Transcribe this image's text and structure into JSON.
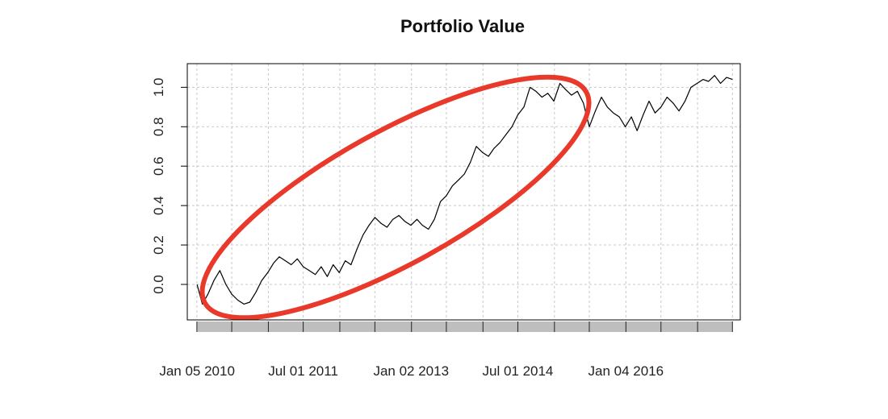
{
  "chart_data": {
    "type": "line",
    "title": "Portfolio Value",
    "xlabel": "",
    "ylabel": "",
    "ylim": [
      -0.18,
      1.12
    ],
    "yticks": [
      "0.0",
      "0.2",
      "0.4",
      "0.6",
      "0.8",
      "1.0"
    ],
    "ytick_values": [
      0.0,
      0.2,
      0.4,
      0.6,
      0.8,
      1.0
    ],
    "xlim": [
      "2009-11-16",
      "2017-08-10"
    ],
    "xtick_labels": [
      "Jan 05 2010",
      "Jul 01 2011",
      "Jan 02 2013",
      "Jul 01 2014",
      "Jan 04 2016"
    ],
    "xtick_dates": [
      "2010-01-05",
      "2011-07-01",
      "2013-01-02",
      "2014-07-01",
      "2016-01-04"
    ],
    "grid": true,
    "colors": {
      "line": "#000000",
      "highlight": "#e8392b",
      "band": "#bebebe",
      "grid": "#c8c8c8"
    },
    "series": [
      {
        "x": [
          "2010-01-05",
          "2010-02-01",
          "2010-03-01",
          "2010-04-01",
          "2010-05-01",
          "2010-06-01",
          "2010-07-01",
          "2010-08-01",
          "2010-09-01",
          "2010-10-01",
          "2010-11-01",
          "2010-12-01",
          "2011-01-01",
          "2011-02-01",
          "2011-03-01",
          "2011-04-01",
          "2011-05-01",
          "2011-06-01",
          "2011-07-01",
          "2011-08-01",
          "2011-09-01",
          "2011-10-01",
          "2011-11-01",
          "2011-12-01",
          "2012-01-01",
          "2012-02-01",
          "2012-03-01",
          "2012-04-01",
          "2012-05-01",
          "2012-06-01",
          "2012-07-01",
          "2012-08-01",
          "2012-09-01",
          "2012-10-01",
          "2012-11-01",
          "2012-12-01",
          "2013-01-01",
          "2013-02-01",
          "2013-03-01",
          "2013-04-01",
          "2013-05-01",
          "2013-06-01",
          "2013-07-01",
          "2013-08-01",
          "2013-09-01",
          "2013-10-01",
          "2013-11-01",
          "2013-12-01",
          "2014-01-01",
          "2014-02-01",
          "2014-03-01",
          "2014-04-01",
          "2014-05-01",
          "2014-06-01",
          "2014-07-01",
          "2014-08-01",
          "2014-09-01",
          "2014-10-01",
          "2014-11-01",
          "2014-12-01",
          "2015-01-01",
          "2015-02-01",
          "2015-03-01",
          "2015-04-01",
          "2015-05-01",
          "2015-06-01",
          "2015-07-01",
          "2015-08-01",
          "2015-09-01",
          "2015-10-01",
          "2015-11-01",
          "2015-12-01",
          "2016-01-01",
          "2016-02-01",
          "2016-03-01",
          "2016-04-01",
          "2016-05-01",
          "2016-06-01",
          "2016-07-01",
          "2016-08-01",
          "2016-09-01",
          "2016-10-01",
          "2016-11-01",
          "2016-12-01",
          "2017-01-01",
          "2017-02-01",
          "2017-03-01",
          "2017-04-01",
          "2017-05-01",
          "2017-06-01",
          "2017-07-01"
        ],
        "values": [
          0.0,
          -0.1,
          -0.05,
          0.02,
          0.07,
          0.0,
          -0.05,
          -0.08,
          -0.1,
          -0.09,
          -0.04,
          0.02,
          0.06,
          0.11,
          0.14,
          0.12,
          0.1,
          0.13,
          0.09,
          0.07,
          0.05,
          0.09,
          0.04,
          0.1,
          0.06,
          0.12,
          0.1,
          0.18,
          0.25,
          0.3,
          0.34,
          0.31,
          0.29,
          0.33,
          0.35,
          0.32,
          0.3,
          0.33,
          0.3,
          0.28,
          0.33,
          0.42,
          0.45,
          0.5,
          0.53,
          0.56,
          0.62,
          0.7,
          0.67,
          0.65,
          0.69,
          0.72,
          0.76,
          0.8,
          0.86,
          0.9,
          1.0,
          0.98,
          0.95,
          0.97,
          0.93,
          1.02,
          0.99,
          0.96,
          0.98,
          0.92,
          0.8,
          0.88,
          0.95,
          0.9,
          0.87,
          0.85,
          0.8,
          0.85,
          0.78,
          0.86,
          0.93,
          0.87,
          0.9,
          0.95,
          0.92,
          0.88,
          0.93,
          1.0,
          1.02,
          1.04,
          1.03,
          1.06,
          1.02,
          1.05,
          1.04
        ]
      }
    ],
    "annotations": [
      {
        "type": "ellipse",
        "description": "highlighted uptrend from Jan 2010 to mid 2014"
      }
    ]
  }
}
